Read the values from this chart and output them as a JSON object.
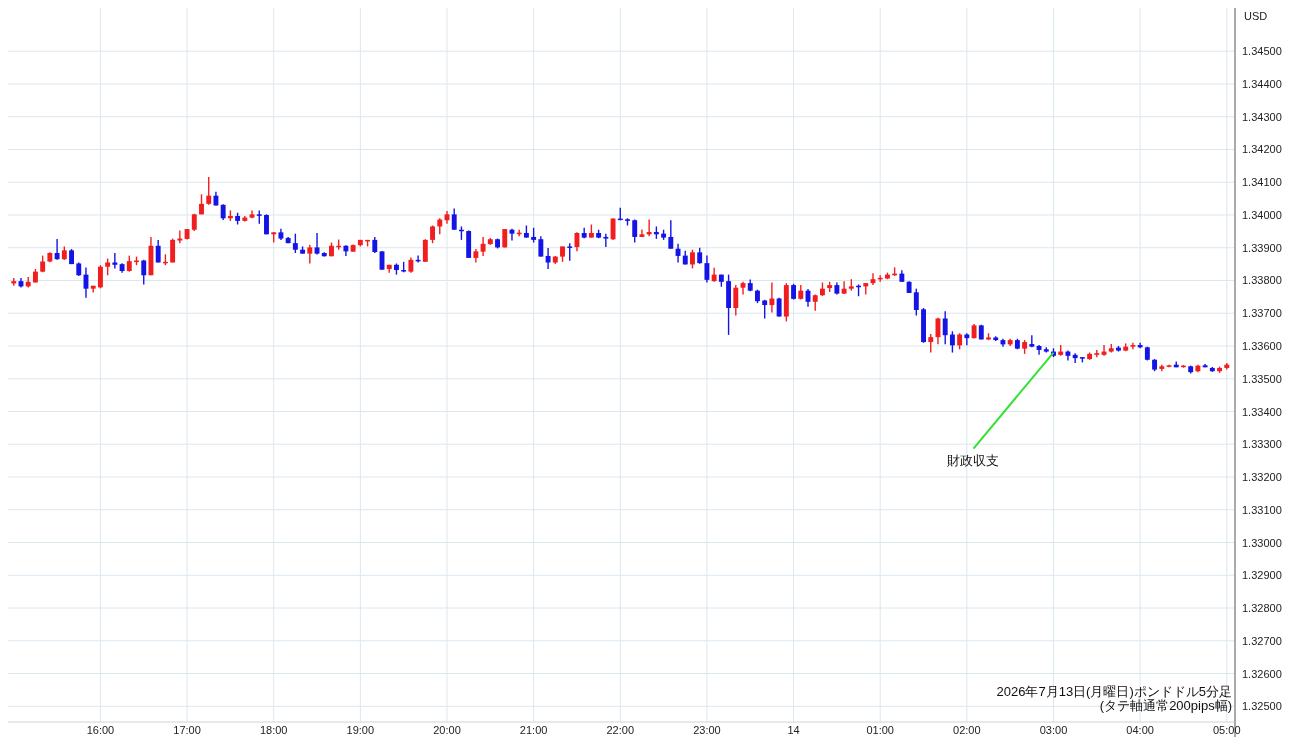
{
  "chart_data": {
    "type": "candlestick",
    "ylabel": "USD",
    "annotations": [
      {
        "text": "財政収支",
        "x": "2026-07-14T03:00",
        "y": 1.3358
      },
      "2026年7月13日(月曜日)ポンドドル5分足",
      "(タテ軸通常200pips幅)"
    ],
    "grid": true,
    "xlim": [
      "2026-07-13T14:56",
      "2026-07-14T05:05"
    ],
    "xticks": [
      {
        "value": "2026-07-13T16:00",
        "label": "16:00"
      },
      {
        "value": "2026-07-13T17:00",
        "label": "17:00"
      },
      {
        "value": "2026-07-13T18:00",
        "label": "18:00"
      },
      {
        "value": "2026-07-13T19:00",
        "label": "19:00"
      },
      {
        "value": "2026-07-13T20:00",
        "label": "20:00"
      },
      {
        "value": "2026-07-13T21:00",
        "label": "21:00"
      },
      {
        "value": "2026-07-13T22:00",
        "label": "22:00"
      },
      {
        "value": "2026-07-13T23:00",
        "label": "23:00"
      },
      {
        "value": "2026-07-14T00:00",
        "label": "14"
      },
      {
        "value": "2026-07-14T01:00",
        "label": "01:00"
      },
      {
        "value": "2026-07-14T02:00",
        "label": "02:00"
      },
      {
        "value": "2026-07-14T03:00",
        "label": "03:00"
      },
      {
        "value": "2026-07-14T04:00",
        "label": "04:00"
      },
      {
        "value": "2026-07-14T05:00",
        "label": "05:00"
      }
    ],
    "ylim": [
      1.32452,
      1.34632
    ],
    "yticks": [
      {
        "value": 1.325,
        "label": "1.32500"
      },
      {
        "value": 1.326,
        "label": "1.32600"
      },
      {
        "value": 1.327,
        "label": "1.32700"
      },
      {
        "value": 1.328,
        "label": "1.32800"
      },
      {
        "value": 1.329,
        "label": "1.32900"
      },
      {
        "value": 1.33,
        "label": "1.33000"
      },
      {
        "value": 1.331,
        "label": "1.33100"
      },
      {
        "value": 1.332,
        "label": "1.33200"
      },
      {
        "value": 1.333,
        "label": "1.33300"
      },
      {
        "value": 1.334,
        "label": "1.33400"
      },
      {
        "value": 1.335,
        "label": "1.33500"
      },
      {
        "value": 1.336,
        "label": "1.33600"
      },
      {
        "value": 1.337,
        "label": "1.33700"
      },
      {
        "value": 1.338,
        "label": "1.33800"
      },
      {
        "value": 1.339,
        "label": "1.33900"
      },
      {
        "value": 1.34,
        "label": "1.34000"
      },
      {
        "value": 1.341,
        "label": "1.34100"
      },
      {
        "value": 1.342,
        "label": "1.34200"
      },
      {
        "value": 1.343,
        "label": "1.34300"
      },
      {
        "value": 1.344,
        "label": "1.34400"
      },
      {
        "value": 1.345,
        "label": "1.34500"
      }
    ],
    "x": [
      "2026-07-13T15:00",
      "2026-07-13T15:05",
      "2026-07-13T15:10",
      "2026-07-13T15:15",
      "2026-07-13T15:20",
      "2026-07-13T15:25",
      "2026-07-13T15:30",
      "2026-07-13T15:35",
      "2026-07-13T15:40",
      "2026-07-13T15:45",
      "2026-07-13T15:50",
      "2026-07-13T15:55",
      "2026-07-13T16:00",
      "2026-07-13T16:05",
      "2026-07-13T16:10",
      "2026-07-13T16:15",
      "2026-07-13T16:20",
      "2026-07-13T16:25",
      "2026-07-13T16:30",
      "2026-07-13T16:35",
      "2026-07-13T16:40",
      "2026-07-13T16:45",
      "2026-07-13T16:50",
      "2026-07-13T16:55",
      "2026-07-13T17:00",
      "2026-07-13T17:05",
      "2026-07-13T17:10",
      "2026-07-13T17:15",
      "2026-07-13T17:20",
      "2026-07-13T17:25",
      "2026-07-13T17:30",
      "2026-07-13T17:35",
      "2026-07-13T17:40",
      "2026-07-13T17:45",
      "2026-07-13T17:50",
      "2026-07-13T17:55",
      "2026-07-13T18:00",
      "2026-07-13T18:05",
      "2026-07-13T18:10",
      "2026-07-13T18:15",
      "2026-07-13T18:20",
      "2026-07-13T18:25",
      "2026-07-13T18:30",
      "2026-07-13T18:35",
      "2026-07-13T18:40",
      "2026-07-13T18:45",
      "2026-07-13T18:50",
      "2026-07-13T18:55",
      "2026-07-13T19:00",
      "2026-07-13T19:05",
      "2026-07-13T19:10",
      "2026-07-13T19:15",
      "2026-07-13T19:20",
      "2026-07-13T19:25",
      "2026-07-13T19:30",
      "2026-07-13T19:35",
      "2026-07-13T19:40",
      "2026-07-13T19:45",
      "2026-07-13T19:50",
      "2026-07-13T19:55",
      "2026-07-13T20:00",
      "2026-07-13T20:05",
      "2026-07-13T20:10",
      "2026-07-13T20:15",
      "2026-07-13T20:20",
      "2026-07-13T20:25",
      "2026-07-13T20:30",
      "2026-07-13T20:35",
      "2026-07-13T20:40",
      "2026-07-13T20:45",
      "2026-07-13T20:50",
      "2026-07-13T20:55",
      "2026-07-13T21:00",
      "2026-07-13T21:05",
      "2026-07-13T21:10",
      "2026-07-13T21:15",
      "2026-07-13T21:20",
      "2026-07-13T21:25",
      "2026-07-13T21:30",
      "2026-07-13T21:35",
      "2026-07-13T21:40",
      "2026-07-13T21:45",
      "2026-07-13T21:50",
      "2026-07-13T21:55",
      "2026-07-13T22:00",
      "2026-07-13T22:05",
      "2026-07-13T22:10",
      "2026-07-13T22:15",
      "2026-07-13T22:20",
      "2026-07-13T22:25",
      "2026-07-13T22:30",
      "2026-07-13T22:35",
      "2026-07-13T22:40",
      "2026-07-13T22:45",
      "2026-07-13T22:50",
      "2026-07-13T22:55",
      "2026-07-13T23:00",
      "2026-07-13T23:05",
      "2026-07-13T23:10",
      "2026-07-13T23:15",
      "2026-07-13T23:20",
      "2026-07-13T23:25",
      "2026-07-13T23:30",
      "2026-07-13T23:35",
      "2026-07-13T23:40",
      "2026-07-13T23:45",
      "2026-07-13T23:50",
      "2026-07-13T23:55",
      "2026-07-14T00:00",
      "2026-07-14T00:05",
      "2026-07-14T00:10",
      "2026-07-14T00:15",
      "2026-07-14T00:20",
      "2026-07-14T00:25",
      "2026-07-14T00:30",
      "2026-07-14T00:35",
      "2026-07-14T00:40",
      "2026-07-14T00:45",
      "2026-07-14T00:50",
      "2026-07-14T00:55",
      "2026-07-14T01:00",
      "2026-07-14T01:05",
      "2026-07-14T01:10",
      "2026-07-14T01:15",
      "2026-07-14T01:20",
      "2026-07-14T01:25",
      "2026-07-14T01:30",
      "2026-07-14T01:35",
      "2026-07-14T01:40",
      "2026-07-14T01:45",
      "2026-07-14T01:50",
      "2026-07-14T01:55",
      "2026-07-14T02:00",
      "2026-07-14T02:05",
      "2026-07-14T02:10",
      "2026-07-14T02:15",
      "2026-07-14T02:20",
      "2026-07-14T02:25",
      "2026-07-14T02:30",
      "2026-07-14T02:35",
      "2026-07-14T02:40",
      "2026-07-14T02:45",
      "2026-07-14T02:50",
      "2026-07-14T02:55",
      "2026-07-14T03:00",
      "2026-07-14T03:05",
      "2026-07-14T03:10",
      "2026-07-14T03:15",
      "2026-07-14T03:20",
      "2026-07-14T03:25",
      "2026-07-14T03:30",
      "2026-07-14T03:35",
      "2026-07-14T03:40",
      "2026-07-14T03:45",
      "2026-07-14T03:50",
      "2026-07-14T03:55",
      "2026-07-14T04:00",
      "2026-07-14T04:05",
      "2026-07-14T04:10",
      "2026-07-14T04:15",
      "2026-07-14T04:20",
      "2026-07-14T04:25",
      "2026-07-14T04:30",
      "2026-07-14T04:35",
      "2026-07-14T04:40",
      "2026-07-14T04:45",
      "2026-07-14T04:50",
      "2026-07-14T04:55",
      "2026-07-14T05:00"
    ],
    "ohlc": [
      [
        1.33791,
        1.33808,
        1.33784,
        1.33798
      ],
      [
        1.33798,
        1.33808,
        1.33779,
        1.33782
      ],
      [
        1.33782,
        1.33811,
        1.33779,
        1.33796
      ],
      [
        1.33794,
        1.33835,
        1.33794,
        1.33827
      ],
      [
        1.33827,
        1.33876,
        1.33825,
        1.33858
      ],
      [
        1.33858,
        1.33886,
        1.33856,
        1.33884
      ],
      [
        1.33884,
        1.33927,
        1.33863,
        1.33865
      ],
      [
        1.33865,
        1.33904,
        1.33863,
        1.33892
      ],
      [
        1.33892,
        1.33896,
        1.3385,
        1.3385
      ],
      [
        1.33852,
        1.33855,
        1.33814,
        1.33816
      ],
      [
        1.33818,
        1.3384,
        1.33747,
        1.33775
      ],
      [
        1.33775,
        1.33784,
        1.33763,
        1.33784
      ],
      [
        1.33779,
        1.33847,
        1.33776,
        1.33842
      ],
      [
        1.33842,
        1.33867,
        1.33816,
        1.33855
      ],
      [
        1.33855,
        1.33884,
        1.33837,
        1.33848
      ],
      [
        1.3385,
        1.33853,
        1.33824,
        1.33829
      ],
      [
        1.33829,
        1.33876,
        1.33827,
        1.33859
      ],
      [
        1.33857,
        1.33873,
        1.33847,
        1.33861
      ],
      [
        1.33861,
        1.33863,
        1.33788,
        1.33816
      ],
      [
        1.33816,
        1.33933,
        1.33816,
        1.33906
      ],
      [
        1.33906,
        1.33924,
        1.33855,
        1.33855
      ],
      [
        1.33855,
        1.3388,
        1.33847,
        1.33857
      ],
      [
        1.33855,
        1.33928,
        1.33855,
        1.33924
      ],
      [
        1.33922,
        1.33953,
        1.33914,
        1.33928
      ],
      [
        1.33927,
        1.33957,
        1.33925,
        1.33957
      ],
      [
        1.33955,
        1.34004,
        1.33951,
        1.34002
      ],
      [
        1.34002,
        1.34063,
        1.34002,
        1.34034
      ],
      [
        1.34034,
        1.34116,
        1.34031,
        1.34059
      ],
      [
        1.34059,
        1.34071,
        1.34029,
        1.34029
      ],
      [
        1.34031,
        1.34033,
        1.33985,
        1.3399
      ],
      [
        1.3399,
        1.34014,
        1.33982,
        1.33997
      ],
      [
        1.33997,
        1.34007,
        1.33971,
        1.33982
      ],
      [
        1.33982,
        1.33997,
        1.3398,
        1.33992
      ],
      [
        1.33992,
        1.34014,
        1.3399,
        1.34002
      ],
      [
        1.34002,
        1.34014,
        1.33973,
        1.34
      ],
      [
        1.34,
        1.34002,
        1.33941,
        1.33941
      ],
      [
        1.33941,
        1.33948,
        1.33916,
        1.33947
      ],
      [
        1.33947,
        1.33958,
        1.33924,
        1.33928
      ],
      [
        1.3393,
        1.33933,
        1.33914,
        1.33914
      ],
      [
        1.33914,
        1.33943,
        1.33884,
        1.33894
      ],
      [
        1.33894,
        1.33904,
        1.33882,
        1.33882
      ],
      [
        1.33882,
        1.33909,
        1.33852,
        1.33901
      ],
      [
        1.33901,
        1.33945,
        1.33879,
        1.33882
      ],
      [
        1.33884,
        1.33886,
        1.33873,
        1.33874
      ],
      [
        1.33874,
        1.33916,
        1.33874,
        1.33906
      ],
      [
        1.33904,
        1.33925,
        1.33894,
        1.33906
      ],
      [
        1.33906,
        1.33908,
        1.33875,
        1.33889
      ],
      [
        1.33888,
        1.3391,
        1.33888,
        1.33908
      ],
      [
        1.33908,
        1.33924,
        1.33904,
        1.33924
      ],
      [
        1.33922,
        1.33924,
        1.33904,
        1.33924
      ],
      [
        1.33924,
        1.33933,
        1.33884,
        1.33887
      ],
      [
        1.33889,
        1.33889,
        1.33833,
        1.33833
      ],
      [
        1.33835,
        1.33848,
        1.33824,
        1.33848
      ],
      [
        1.33848,
        1.33852,
        1.33818,
        1.33832
      ],
      [
        1.33832,
        1.33857,
        1.33825,
        1.3383
      ],
      [
        1.33827,
        1.3387,
        1.33824,
        1.33863
      ],
      [
        1.33863,
        1.33876,
        1.33855,
        1.33859
      ],
      [
        1.33857,
        1.33926,
        1.33857,
        1.33924
      ],
      [
        1.33924,
        1.33968,
        1.33914,
        1.33965
      ],
      [
        1.33965,
        1.3399,
        1.33941,
        1.33986
      ],
      [
        1.33984,
        1.34012,
        1.33973,
        1.34002
      ],
      [
        1.34002,
        1.3402,
        1.33955,
        1.33955
      ],
      [
        1.33955,
        1.33965,
        1.33924,
        1.33951
      ],
      [
        1.33951,
        1.33953,
        1.33869,
        1.33869
      ],
      [
        1.33869,
        1.33896,
        1.33855,
        1.33889
      ],
      [
        1.33888,
        1.33933,
        1.33875,
        1.33912
      ],
      [
        1.33911,
        1.3393,
        1.33909,
        1.33926
      ],
      [
        1.33926,
        1.33928,
        1.33898,
        1.33901
      ],
      [
        1.33901,
        1.33957,
        1.33901,
        1.33957
      ],
      [
        1.33955,
        1.33958,
        1.33922,
        1.33943
      ],
      [
        1.33943,
        1.33955,
        1.33935,
        1.33946
      ],
      [
        1.33945,
        1.33968,
        1.33931,
        1.33931
      ],
      [
        1.33933,
        1.33961,
        1.33916,
        1.33924
      ],
      [
        1.33926,
        1.33935,
        1.33873,
        1.33873
      ],
      [
        1.33875,
        1.33899,
        1.33835,
        1.33855
      ],
      [
        1.33855,
        1.33875,
        1.3385,
        1.33873
      ],
      [
        1.33873,
        1.33904,
        1.33857,
        1.33904
      ],
      [
        1.33904,
        1.33914,
        1.3386,
        1.33902
      ],
      [
        1.33902,
        1.33947,
        1.33889,
        1.33945
      ],
      [
        1.33945,
        1.33961,
        1.33929,
        1.33931
      ],
      [
        1.33931,
        1.33971,
        1.33931,
        1.33945
      ],
      [
        1.33945,
        1.33955,
        1.33929,
        1.33931
      ],
      [
        1.33933,
        1.33943,
        1.33902,
        1.33928
      ],
      [
        1.33926,
        1.3399,
        1.33924,
        1.33989
      ],
      [
        1.33989,
        1.34022,
        1.33984,
        1.33986
      ],
      [
        1.33987,
        1.3399,
        1.33968,
        1.33982
      ],
      [
        1.33984,
        1.33986,
        1.33916,
        1.33933
      ],
      [
        1.33933,
        1.33956,
        1.33933,
        1.33941
      ],
      [
        1.33941,
        1.33986,
        1.33935,
        1.33948
      ],
      [
        1.33948,
        1.33965,
        1.33927,
        1.33941
      ],
      [
        1.33943,
        1.33955,
        1.33924,
        1.33931
      ],
      [
        1.33933,
        1.33984,
        1.33897,
        1.33897
      ],
      [
        1.33897,
        1.33912,
        1.33855,
        1.33875
      ],
      [
        1.33876,
        1.33891,
        1.33849,
        1.33849
      ],
      [
        1.33849,
        1.33894,
        1.33837,
        1.33886
      ],
      [
        1.33886,
        1.339,
        1.33851,
        1.33853
      ],
      [
        1.33853,
        1.33876,
        1.33794,
        1.33802
      ],
      [
        1.33798,
        1.33839,
        1.33796,
        1.33818
      ],
      [
        1.33818,
        1.33818,
        1.33781,
        1.33796
      ],
      [
        1.33798,
        1.33818,
        1.33634,
        1.33716
      ],
      [
        1.33716,
        1.33786,
        1.33693,
        1.33778
      ],
      [
        1.33778,
        1.33796,
        1.33757,
        1.33792
      ],
      [
        1.33792,
        1.33803,
        1.33767,
        1.33769
      ],
      [
        1.33769,
        1.33772,
        1.33731,
        1.33737
      ],
      [
        1.33739,
        1.33741,
        1.33684,
        1.33725
      ],
      [
        1.33725,
        1.33794,
        1.33702,
        1.33745
      ],
      [
        1.33745,
        1.33747,
        1.3369,
        1.3369
      ],
      [
        1.3369,
        1.33792,
        1.33675,
        1.33786
      ],
      [
        1.33786,
        1.3379,
        1.33742,
        1.33744
      ],
      [
        1.33744,
        1.33786,
        1.33742,
        1.33769
      ],
      [
        1.33769,
        1.33774,
        1.3372,
        1.33735
      ],
      [
        1.33735,
        1.33757,
        1.33708,
        1.33755
      ],
      [
        1.33755,
        1.33794,
        1.33753,
        1.33775
      ],
      [
        1.33777,
        1.33796,
        1.33765,
        1.33786
      ],
      [
        1.33786,
        1.33794,
        1.33757,
        1.3376
      ],
      [
        1.3376,
        1.33798,
        1.33759,
        1.33775
      ],
      [
        1.33775,
        1.33804,
        1.33769,
        1.33782
      ],
      [
        1.33784,
        1.33788,
        1.33752,
        1.33782
      ],
      [
        1.33782,
        1.33792,
        1.33757,
        1.33792
      ],
      [
        1.33792,
        1.33822,
        1.33786,
        1.33804
      ],
      [
        1.33804,
        1.33816,
        1.33796,
        1.33808
      ],
      [
        1.33806,
        1.33824,
        1.33804,
        1.33818
      ],
      [
        1.33816,
        1.3384,
        1.33814,
        1.33821
      ],
      [
        1.33821,
        1.33831,
        1.33796,
        1.33796
      ],
      [
        1.33796,
        1.33798,
        1.33762,
        1.33762
      ],
      [
        1.33764,
        1.33775,
        1.33693,
        1.3371
      ],
      [
        1.33712,
        1.33716,
        1.3361,
        1.33612
      ],
      [
        1.33612,
        1.33637,
        1.3358,
        1.33627
      ],
      [
        1.33627,
        1.33686,
        1.33605,
        1.33684
      ],
      [
        1.33684,
        1.33706,
        1.33605,
        1.33633
      ],
      [
        1.33635,
        1.33645,
        1.3358,
        1.33602
      ],
      [
        1.33602,
        1.33639,
        1.3359,
        1.33635
      ],
      [
        1.33635,
        1.33639,
        1.33602,
        1.33624
      ],
      [
        1.33624,
        1.33667,
        1.33623,
        1.33663
      ],
      [
        1.33663,
        1.33665,
        1.3362,
        1.3362
      ],
      [
        1.3362,
        1.33639,
        1.33618,
        1.33626
      ],
      [
        1.33626,
        1.3363,
        1.33615,
        1.33618
      ],
      [
        1.33618,
        1.33622,
        1.33598,
        1.33605
      ],
      [
        1.33605,
        1.33622,
        1.336,
        1.33618
      ],
      [
        1.33618,
        1.33622,
        1.3359,
        1.33592
      ],
      [
        1.33592,
        1.33618,
        1.33576,
        1.33612
      ],
      [
        1.33606,
        1.33633,
        1.33596,
        1.33598
      ],
      [
        1.336,
        1.33603,
        1.33573,
        1.33588
      ],
      [
        1.3359,
        1.33596,
        1.3358,
        1.33583
      ],
      [
        1.33583,
        1.33593,
        1.33566,
        1.3357
      ],
      [
        1.33573,
        1.33603,
        1.3357,
        1.33583
      ],
      [
        1.33583,
        1.33586,
        1.33556,
        1.3357
      ],
      [
        1.33573,
        1.33578,
        1.33548,
        1.33563
      ],
      [
        1.33566,
        1.33566,
        1.3355,
        1.33563
      ],
      [
        1.3356,
        1.3358,
        1.33558,
        1.33576
      ],
      [
        1.33573,
        1.33588,
        1.33566,
        1.33578
      ],
      [
        1.33573,
        1.33603,
        1.3357,
        1.33583
      ],
      [
        1.33583,
        1.33606,
        1.3358,
        1.33593
      ],
      [
        1.33595,
        1.336,
        1.33583,
        1.33586
      ],
      [
        1.33586,
        1.33608,
        1.33584,
        1.33598
      ],
      [
        1.33598,
        1.3361,
        1.3359,
        1.33603
      ],
      [
        1.33603,
        1.3361,
        1.33593,
        1.33596
      ],
      [
        1.33596,
        1.33598,
        1.33556,
        1.33558
      ],
      [
        1.33558,
        1.3356,
        1.33523,
        1.33528
      ],
      [
        1.3353,
        1.33543,
        1.33523,
        1.33538
      ],
      [
        1.33538,
        1.33543,
        1.33535,
        1.33541
      ],
      [
        1.33543,
        1.33553,
        1.33535,
        1.33535
      ],
      [
        1.33536,
        1.33542,
        1.33534,
        1.3354
      ],
      [
        1.33538,
        1.3354,
        1.33516,
        1.3352
      ],
      [
        1.33523,
        1.33543,
        1.3352,
        1.3354
      ],
      [
        1.33541,
        1.33545,
        1.33535,
        1.33535
      ],
      [
        1.33533,
        1.33536,
        1.33521,
        1.33523
      ],
      [
        1.33523,
        1.33537,
        1.33518,
        1.33533
      ],
      [
        1.33533,
        1.33548,
        1.33528,
        1.33543
      ]
    ],
    "colors": [
      "#f01e1e",
      "#1414e6",
      "#f01e1e",
      "#f01e1e",
      "#f01e1e",
      "#f01e1e",
      "#1414e6",
      "#f01e1e",
      "#1414e6",
      "#1414e6",
      "#1414e6",
      "#f01e1e",
      "#f01e1e",
      "#f01e1e",
      "#1414e6",
      "#1414e6",
      "#f01e1e",
      "#f01e1e",
      "#1414e6",
      "#f01e1e",
      "#1414e6",
      "#f01e1e",
      "#f01e1e",
      "#f01e1e",
      "#f01e1e",
      "#f01e1e",
      "#f01e1e",
      "#f01e1e",
      "#1414e6",
      "#1414e6",
      "#f01e1e",
      "#1414e6",
      "#f01e1e",
      "#f01e1e",
      "#1414e6",
      "#1414e6",
      "#f01e1e",
      "#1414e6",
      "#1414e6",
      "#1414e6",
      "#1414e6",
      "#f01e1e",
      "#1414e6",
      "#1414e6",
      "#f01e1e",
      "#f01e1e",
      "#1414e6",
      "#f01e1e",
      "#f01e1e",
      "#f01e1e",
      "#1414e6",
      "#1414e6",
      "#f01e1e",
      "#1414e6",
      "#1414e6",
      "#f01e1e",
      "#1414e6",
      "#f01e1e",
      "#f01e1e",
      "#f01e1e",
      "#f01e1e",
      "#1414e6",
      "#1414e6",
      "#1414e6",
      "#f01e1e",
      "#f01e1e",
      "#f01e1e",
      "#1414e6",
      "#f01e1e",
      "#1414e6",
      "#f01e1e",
      "#1414e6",
      "#1414e6",
      "#1414e6",
      "#1414e6",
      "#f01e1e",
      "#f01e1e",
      "#1414e6",
      "#f01e1e",
      "#1414e6",
      "#f01e1e",
      "#1414e6",
      "#1414e6",
      "#f01e1e",
      "#1414e6",
      "#1414e6",
      "#1414e6",
      "#f01e1e",
      "#f01e1e",
      "#1414e6",
      "#1414e6",
      "#1414e6",
      "#1414e6",
      "#1414e6",
      "#f01e1e",
      "#1414e6",
      "#1414e6",
      "#f01e1e",
      "#1414e6",
      "#1414e6",
      "#f01e1e",
      "#f01e1e",
      "#1414e6",
      "#1414e6",
      "#1414e6",
      "#f01e1e",
      "#1414e6",
      "#f01e1e",
      "#1414e6",
      "#f01e1e",
      "#1414e6",
      "#f01e1e",
      "#f01e1e",
      "#f01e1e",
      "#1414e6",
      "#f01e1e",
      "#f01e1e",
      "#1414e6",
      "#f01e1e",
      "#f01e1e",
      "#f01e1e",
      "#f01e1e",
      "#f01e1e",
      "#1414e6",
      "#1414e6",
      "#1414e6",
      "#1414e6",
      "#f01e1e",
      "#f01e1e",
      "#1414e6",
      "#1414e6",
      "#f01e1e",
      "#1414e6",
      "#f01e1e",
      "#1414e6",
      "#f01e1e",
      "#1414e6",
      "#1414e6",
      "#f01e1e",
      "#1414e6",
      "#f01e1e",
      "#1414e6",
      "#1414e6",
      "#1414e6",
      "#1414e6",
      "#f01e1e",
      "#1414e6",
      "#1414e6",
      "#1414e6",
      "#f01e1e",
      "#f01e1e",
      "#f01e1e",
      "#f01e1e",
      "#1414e6",
      "#f01e1e",
      "#f01e1e",
      "#1414e6",
      "#1414e6",
      "#1414e6",
      "#f01e1e",
      "#f01e1e",
      "#1414e6",
      "#f01e1e",
      "#1414e6",
      "#f01e1e",
      "#1414e6",
      "#1414e6",
      "#f01e1e",
      "#f01e1e"
    ]
  }
}
